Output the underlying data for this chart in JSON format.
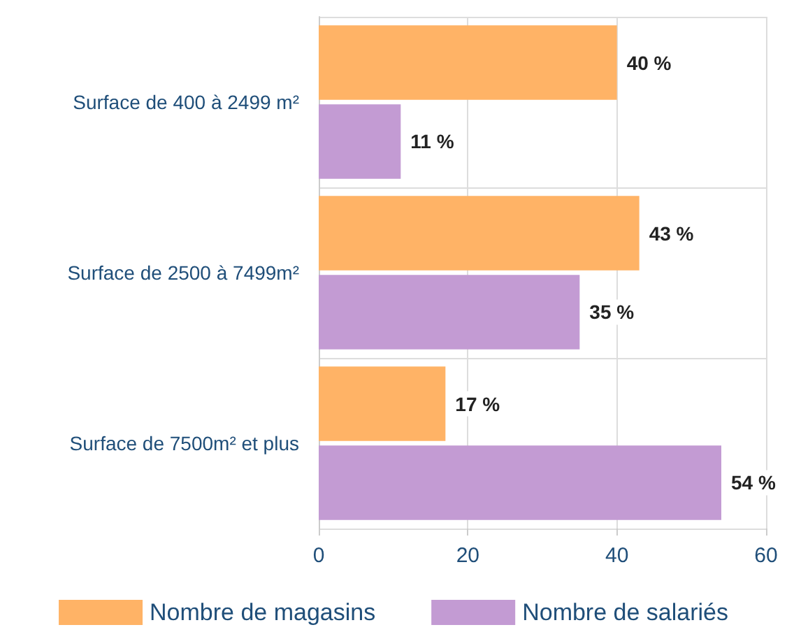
{
  "chart_data": {
    "type": "bar",
    "orientation": "horizontal",
    "categories": [
      "Surface de 400 à 2499 m²",
      "Surface de 2500 à 7499m²",
      "Surface de 7500m² et plus"
    ],
    "series": [
      {
        "name": "Nombre de magasins",
        "color": "#ffb366",
        "values": [
          40,
          43,
          17
        ],
        "value_labels": [
          "40 %",
          "43 %",
          "17 %"
        ]
      },
      {
        "name": "Nombre de salariés",
        "color": "#c39bd3",
        "values": [
          11,
          35,
          54
        ],
        "value_labels": [
          "11 %",
          "35 %",
          "54 %"
        ]
      }
    ],
    "xlim": [
      0,
      60
    ],
    "xticks": [
      0,
      20,
      40,
      60
    ],
    "grid": true,
    "legend": "bottom"
  }
}
